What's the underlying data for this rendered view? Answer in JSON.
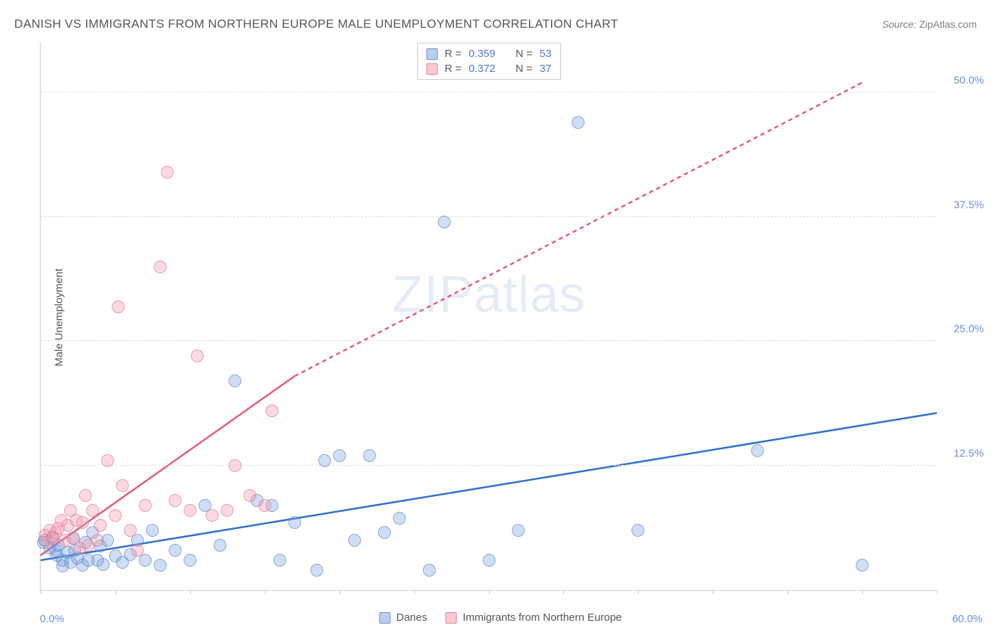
{
  "chart": {
    "type": "scatter-correlation",
    "title": "DANISH VS IMMIGRANTS FROM NORTHERN EUROPE MALE UNEMPLOYMENT CORRELATION CHART",
    "source_label": "Source:",
    "source_value": "ZipAtlas.com",
    "y_axis_label": "Male Unemployment",
    "background_color": "#ffffff",
    "grid_color": "#dddddd",
    "axis_color": "#cccccc",
    "tick_label_color": "#6a8fd8",
    "text_color": "#555555",
    "title_fontsize": 17,
    "axis_label_fontsize": 15,
    "tick_fontsize": 15,
    "marker_radius": 9,
    "xlim": [
      0,
      60
    ],
    "ylim": [
      0,
      55
    ],
    "x_ticks": [
      0,
      5,
      10,
      15,
      20,
      25,
      30,
      35,
      40,
      45,
      50,
      55,
      60
    ],
    "x_min_label": "0.0%",
    "x_max_label": "60.0%",
    "y_gridlines": [
      {
        "value": 12.5,
        "label": "12.5%"
      },
      {
        "value": 25.0,
        "label": "25.0%"
      },
      {
        "value": 37.5,
        "label": "37.5%"
      },
      {
        "value": 50.0,
        "label": "50.0%"
      }
    ],
    "watermark": {
      "zip": "ZIP",
      "atlas": "atlas"
    },
    "series": [
      {
        "id": "danes",
        "name": "Danes",
        "color_fill": "rgba(120,160,220,0.35)",
        "color_stroke": "rgba(90,130,200,0.6)",
        "trend_color": "#2f6fd0",
        "trend_width": 2.5,
        "trend_dash": "none",
        "trend_p1": [
          0,
          3.0
        ],
        "trend_p2": [
          60,
          17.8
        ],
        "R": "0.359",
        "N": "53",
        "points": [
          [
            0.2,
            4.8
          ],
          [
            0.3,
            5.0
          ],
          [
            0.6,
            4.2
          ],
          [
            0.8,
            5.4
          ],
          [
            1.0,
            4.0
          ],
          [
            1.1,
            3.5
          ],
          [
            1.2,
            4.5
          ],
          [
            1.5,
            2.4
          ],
          [
            1.5,
            3.0
          ],
          [
            1.8,
            3.8
          ],
          [
            2.0,
            2.8
          ],
          [
            2.2,
            5.2
          ],
          [
            2.3,
            4.0
          ],
          [
            2.5,
            3.2
          ],
          [
            2.8,
            2.5
          ],
          [
            3.0,
            4.8
          ],
          [
            3.2,
            3.0
          ],
          [
            3.5,
            5.8
          ],
          [
            3.8,
            3.0
          ],
          [
            4.0,
            4.4
          ],
          [
            4.2,
            2.6
          ],
          [
            4.5,
            5.0
          ],
          [
            5.0,
            3.4
          ],
          [
            5.5,
            2.8
          ],
          [
            6.0,
            3.6
          ],
          [
            6.5,
            5.0
          ],
          [
            7.0,
            3.0
          ],
          [
            7.5,
            6.0
          ],
          [
            8.0,
            2.5
          ],
          [
            9.0,
            4.0
          ],
          [
            10.0,
            3.0
          ],
          [
            11.0,
            8.5
          ],
          [
            12.0,
            4.5
          ],
          [
            13.0,
            21.0
          ],
          [
            14.5,
            9.0
          ],
          [
            15.5,
            8.5
          ],
          [
            16.0,
            3.0
          ],
          [
            17.0,
            6.8
          ],
          [
            18.5,
            2.0
          ],
          [
            19.0,
            13.0
          ],
          [
            20.0,
            13.5
          ],
          [
            21.0,
            5.0
          ],
          [
            22.0,
            13.5
          ],
          [
            23.0,
            5.8
          ],
          [
            24.0,
            7.2
          ],
          [
            26.0,
            2.0
          ],
          [
            27.0,
            37.0
          ],
          [
            30.0,
            3.0
          ],
          [
            32.0,
            6.0
          ],
          [
            36.0,
            47.0
          ],
          [
            40.0,
            6.0
          ],
          [
            48.0,
            14.0
          ],
          [
            55.0,
            2.5
          ]
        ]
      },
      {
        "id": "immigrants",
        "name": "Immigrants from Northern Europe",
        "color_fill": "rgba(240,150,170,0.35)",
        "color_stroke": "rgba(230,110,140,0.6)",
        "trend_color": "#e45a7a",
        "trend_width": 2.5,
        "trend_dash": "6 5",
        "trend_p1": [
          0,
          3.5
        ],
        "trend_solid_until": [
          17,
          21.5
        ],
        "trend_p2": [
          55,
          51.0
        ],
        "R": "0.372",
        "N": "37",
        "points": [
          [
            0.3,
            5.5
          ],
          [
            0.5,
            4.8
          ],
          [
            0.6,
            6.0
          ],
          [
            0.8,
            5.2
          ],
          [
            1.0,
            5.8
          ],
          [
            1.2,
            6.2
          ],
          [
            1.4,
            7.0
          ],
          [
            1.6,
            5.0
          ],
          [
            1.8,
            6.5
          ],
          [
            2.0,
            8.0
          ],
          [
            2.2,
            5.2
          ],
          [
            2.4,
            7.0
          ],
          [
            2.6,
            4.2
          ],
          [
            2.8,
            6.8
          ],
          [
            3.0,
            9.5
          ],
          [
            3.2,
            4.5
          ],
          [
            3.5,
            8.0
          ],
          [
            3.8,
            5.0
          ],
          [
            4.0,
            6.5
          ],
          [
            4.5,
            13.0
          ],
          [
            5.0,
            7.5
          ],
          [
            5.2,
            28.5
          ],
          [
            5.5,
            10.5
          ],
          [
            6.0,
            6.0
          ],
          [
            6.5,
            4.0
          ],
          [
            7.0,
            8.5
          ],
          [
            8.0,
            32.5
          ],
          [
            8.5,
            42.0
          ],
          [
            9.0,
            9.0
          ],
          [
            10.0,
            8.0
          ],
          [
            10.5,
            23.5
          ],
          [
            11.5,
            7.5
          ],
          [
            12.5,
            8.0
          ],
          [
            13.0,
            12.5
          ],
          [
            14.0,
            9.5
          ],
          [
            15.0,
            8.5
          ],
          [
            15.5,
            18.0
          ]
        ]
      }
    ],
    "stats_labels": {
      "R": "R =",
      "N": "N ="
    }
  }
}
